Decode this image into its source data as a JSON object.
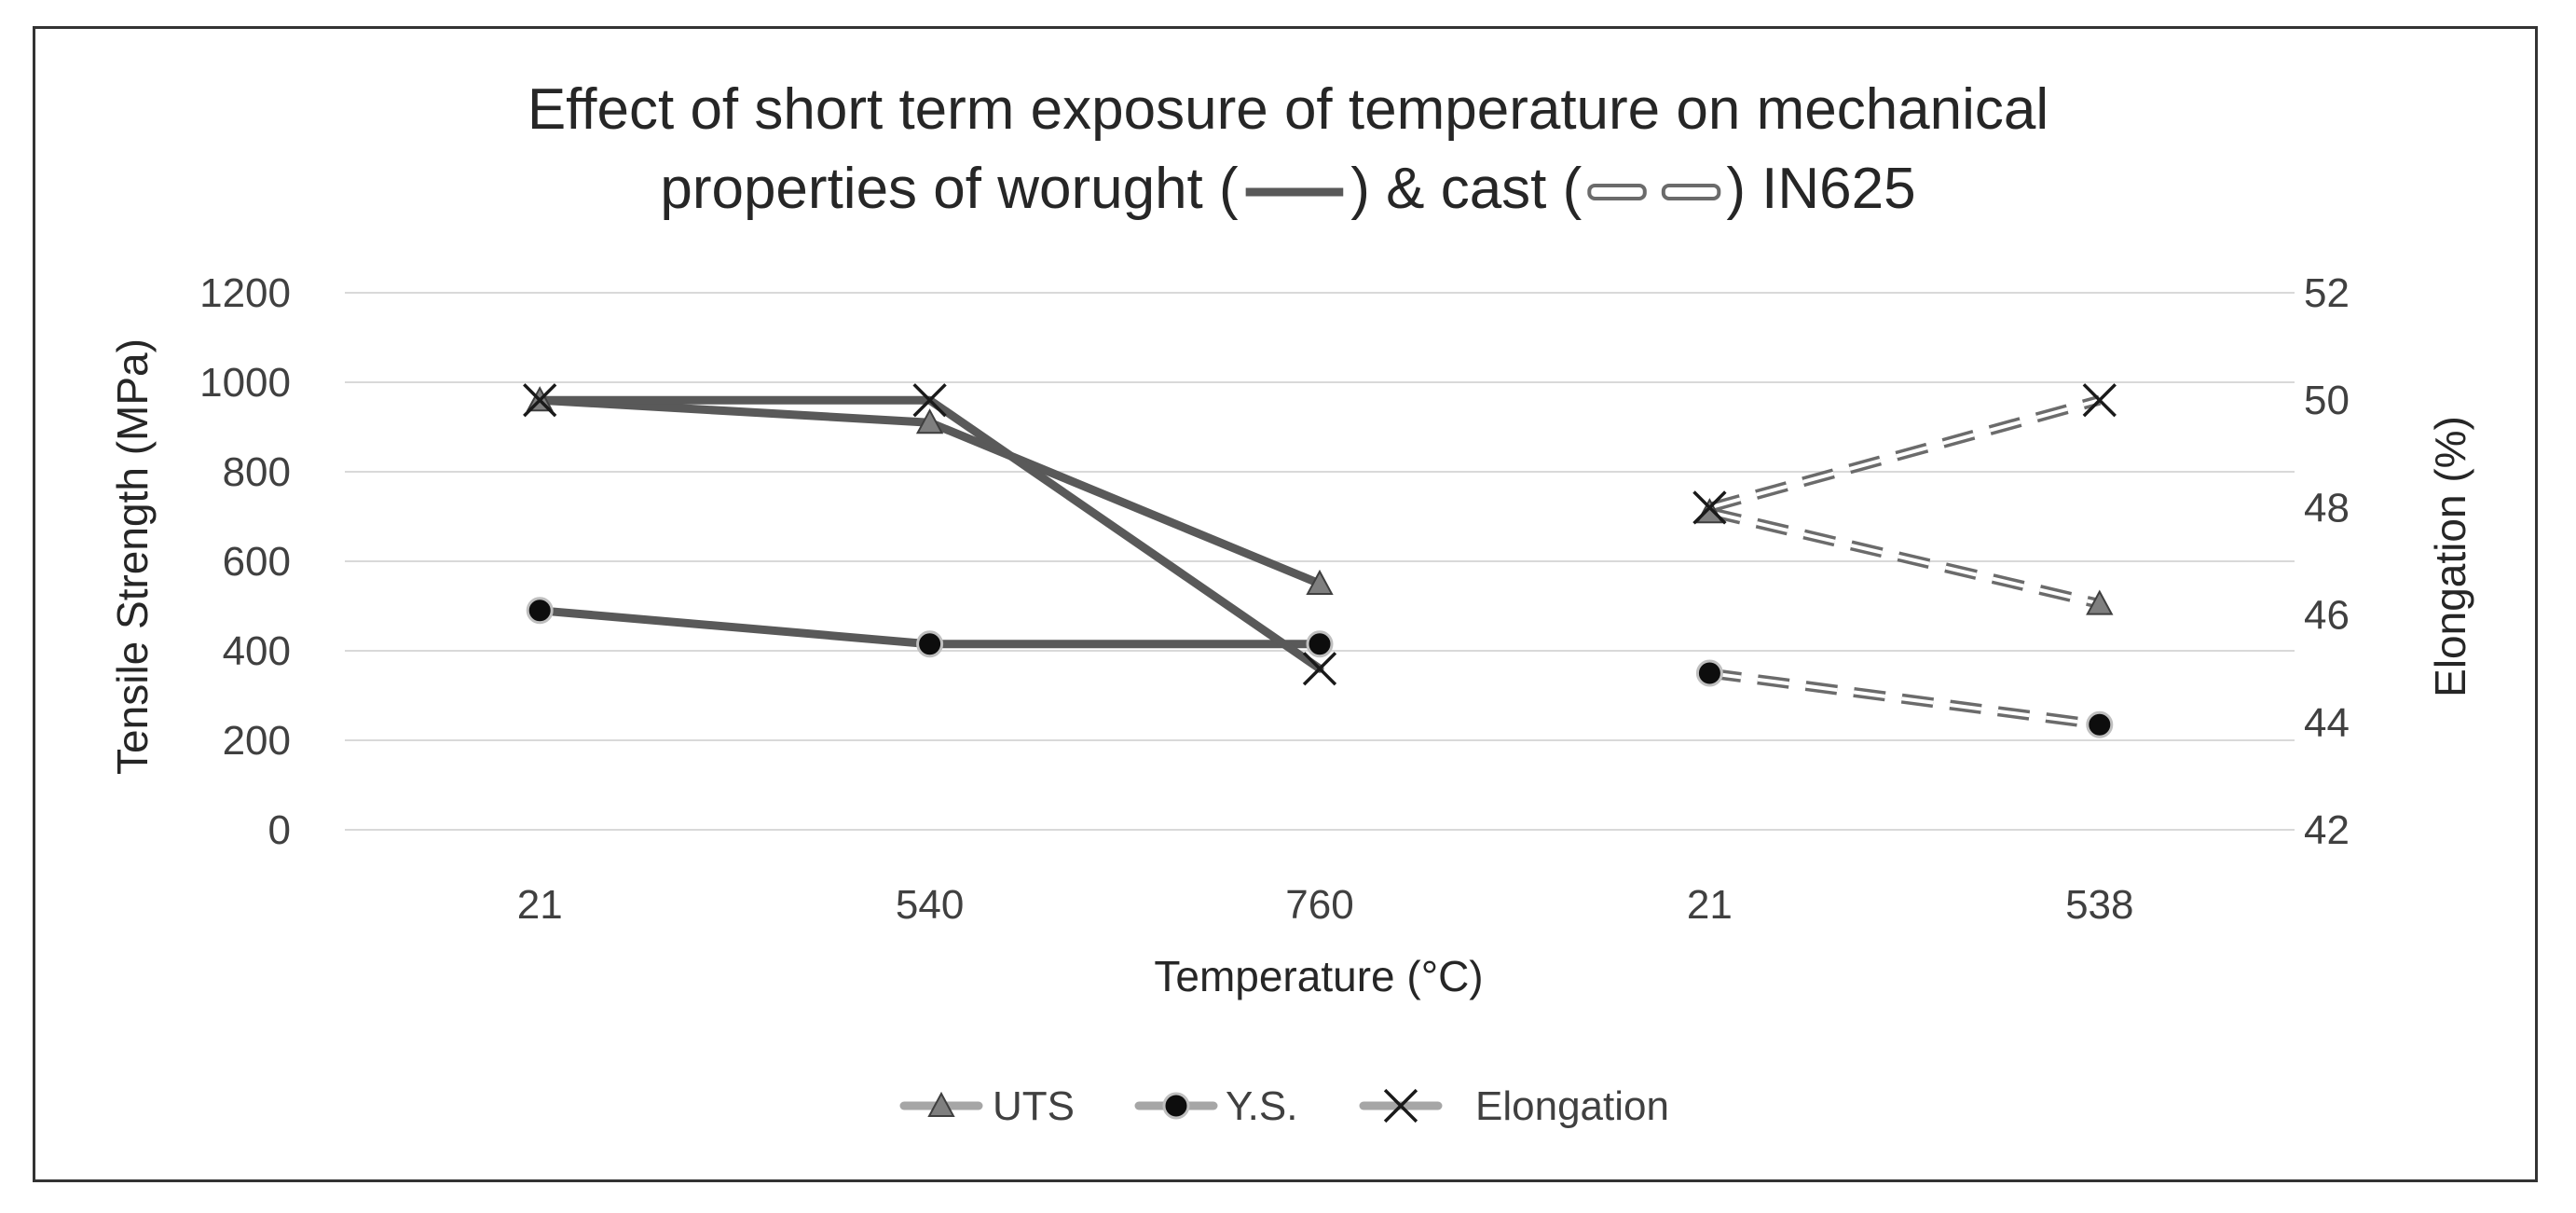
{
  "chart_data": {
    "type": "line",
    "title": {
      "line1": "Effect of short term exposure of temperature on mechanical",
      "line2_prefix": "properties of worught (",
      "line2_middle": ") & cast (",
      "line2_suffix": ") IN625"
    },
    "xlabel": "Temperature (°C)",
    "ylabel_left": "Tensile Strength (MPa)",
    "ylabel_right": "Elongation (%)",
    "categories": [
      "21",
      "540",
      "760",
      "21",
      "538"
    ],
    "ylim_left": [
      0,
      1200
    ],
    "yticks_left": [
      0,
      200,
      400,
      600,
      800,
      1000,
      1200
    ],
    "ylim_right": [
      42,
      52
    ],
    "yticks_right": [
      42,
      44,
      46,
      48,
      50,
      52
    ],
    "grid": true,
    "legend_position": "bottom",
    "groups": [
      {
        "name": "worught",
        "style": "solid",
        "indices": [
          0,
          1,
          2
        ]
      },
      {
        "name": "cast",
        "style": "dashed-double",
        "indices": [
          3,
          4
        ]
      }
    ],
    "series": [
      {
        "name": "UTS",
        "axis": "left",
        "marker": "triangle",
        "values": [
          960,
          910,
          550,
          710,
          505
        ]
      },
      {
        "name": "Y.S.",
        "axis": "left",
        "marker": "circle",
        "values": [
          490,
          415,
          415,
          350,
          235
        ]
      },
      {
        "name": "Elongation",
        "axis": "right",
        "marker": "x",
        "values": [
          50,
          50,
          45,
          48,
          50
        ]
      }
    ],
    "colors": {
      "line": "#595959",
      "cast_outer": "#6b6b6b",
      "cast_inner": "#ffffff",
      "triangle_fill": "#7f7f7f",
      "circle_fill": "#0d0d0d",
      "legend_line": "#a6a6a6"
    }
  }
}
